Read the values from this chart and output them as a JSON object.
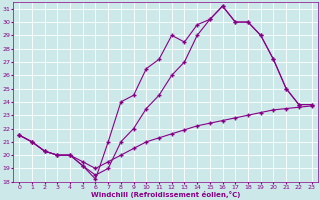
{
  "xlabel": "Windchill (Refroidissement éolien,°C)",
  "xlim": [
    -0.5,
    23.5
  ],
  "ylim": [
    18,
    31.5
  ],
  "xticks": [
    0,
    1,
    2,
    3,
    4,
    5,
    6,
    7,
    8,
    9,
    10,
    11,
    12,
    13,
    14,
    15,
    16,
    17,
    18,
    19,
    20,
    21,
    22,
    23
  ],
  "yticks": [
    18,
    19,
    20,
    21,
    22,
    23,
    24,
    25,
    26,
    27,
    28,
    29,
    30,
    31
  ],
  "background_color": "#cce8e8",
  "line_color": "#880088",
  "grid_color": "#ffffff",
  "line1_x": [
    0,
    1,
    2,
    3,
    4,
    5,
    6,
    7,
    8,
    9,
    10,
    11,
    12,
    13,
    14,
    15,
    16,
    17,
    18,
    19,
    20,
    21,
    22,
    23
  ],
  "line1_y": [
    21.5,
    21.0,
    20.3,
    20.0,
    20.0,
    19.5,
    19.0,
    19.5,
    20.0,
    20.5,
    21.0,
    21.3,
    21.6,
    21.9,
    22.2,
    22.4,
    22.6,
    22.8,
    23.0,
    23.2,
    23.4,
    23.5,
    23.6,
    23.7
  ],
  "line2_x": [
    0,
    1,
    2,
    3,
    4,
    5,
    6,
    7,
    8,
    9,
    10,
    11,
    12,
    13,
    14,
    15,
    16,
    17,
    18,
    19,
    20,
    21,
    22,
    23
  ],
  "line2_y": [
    21.5,
    21.0,
    20.3,
    20.0,
    20.0,
    19.2,
    18.5,
    19.0,
    21.0,
    22.0,
    23.5,
    24.5,
    26.0,
    27.0,
    29.0,
    30.2,
    31.2,
    30.0,
    30.0,
    29.0,
    27.2,
    25.0,
    23.8,
    23.8
  ],
  "line3_x": [
    0,
    1,
    2,
    3,
    4,
    5,
    6,
    7,
    8,
    9,
    10,
    11,
    12,
    13,
    14,
    15,
    16,
    17,
    18,
    19,
    20,
    21,
    22,
    23
  ],
  "line3_y": [
    21.5,
    21.0,
    20.3,
    20.0,
    20.0,
    19.2,
    18.2,
    21.0,
    24.0,
    24.5,
    26.5,
    27.2,
    29.0,
    28.5,
    29.8,
    30.2,
    31.2,
    30.0,
    30.0,
    29.0,
    27.2,
    25.0,
    23.8,
    23.8
  ]
}
